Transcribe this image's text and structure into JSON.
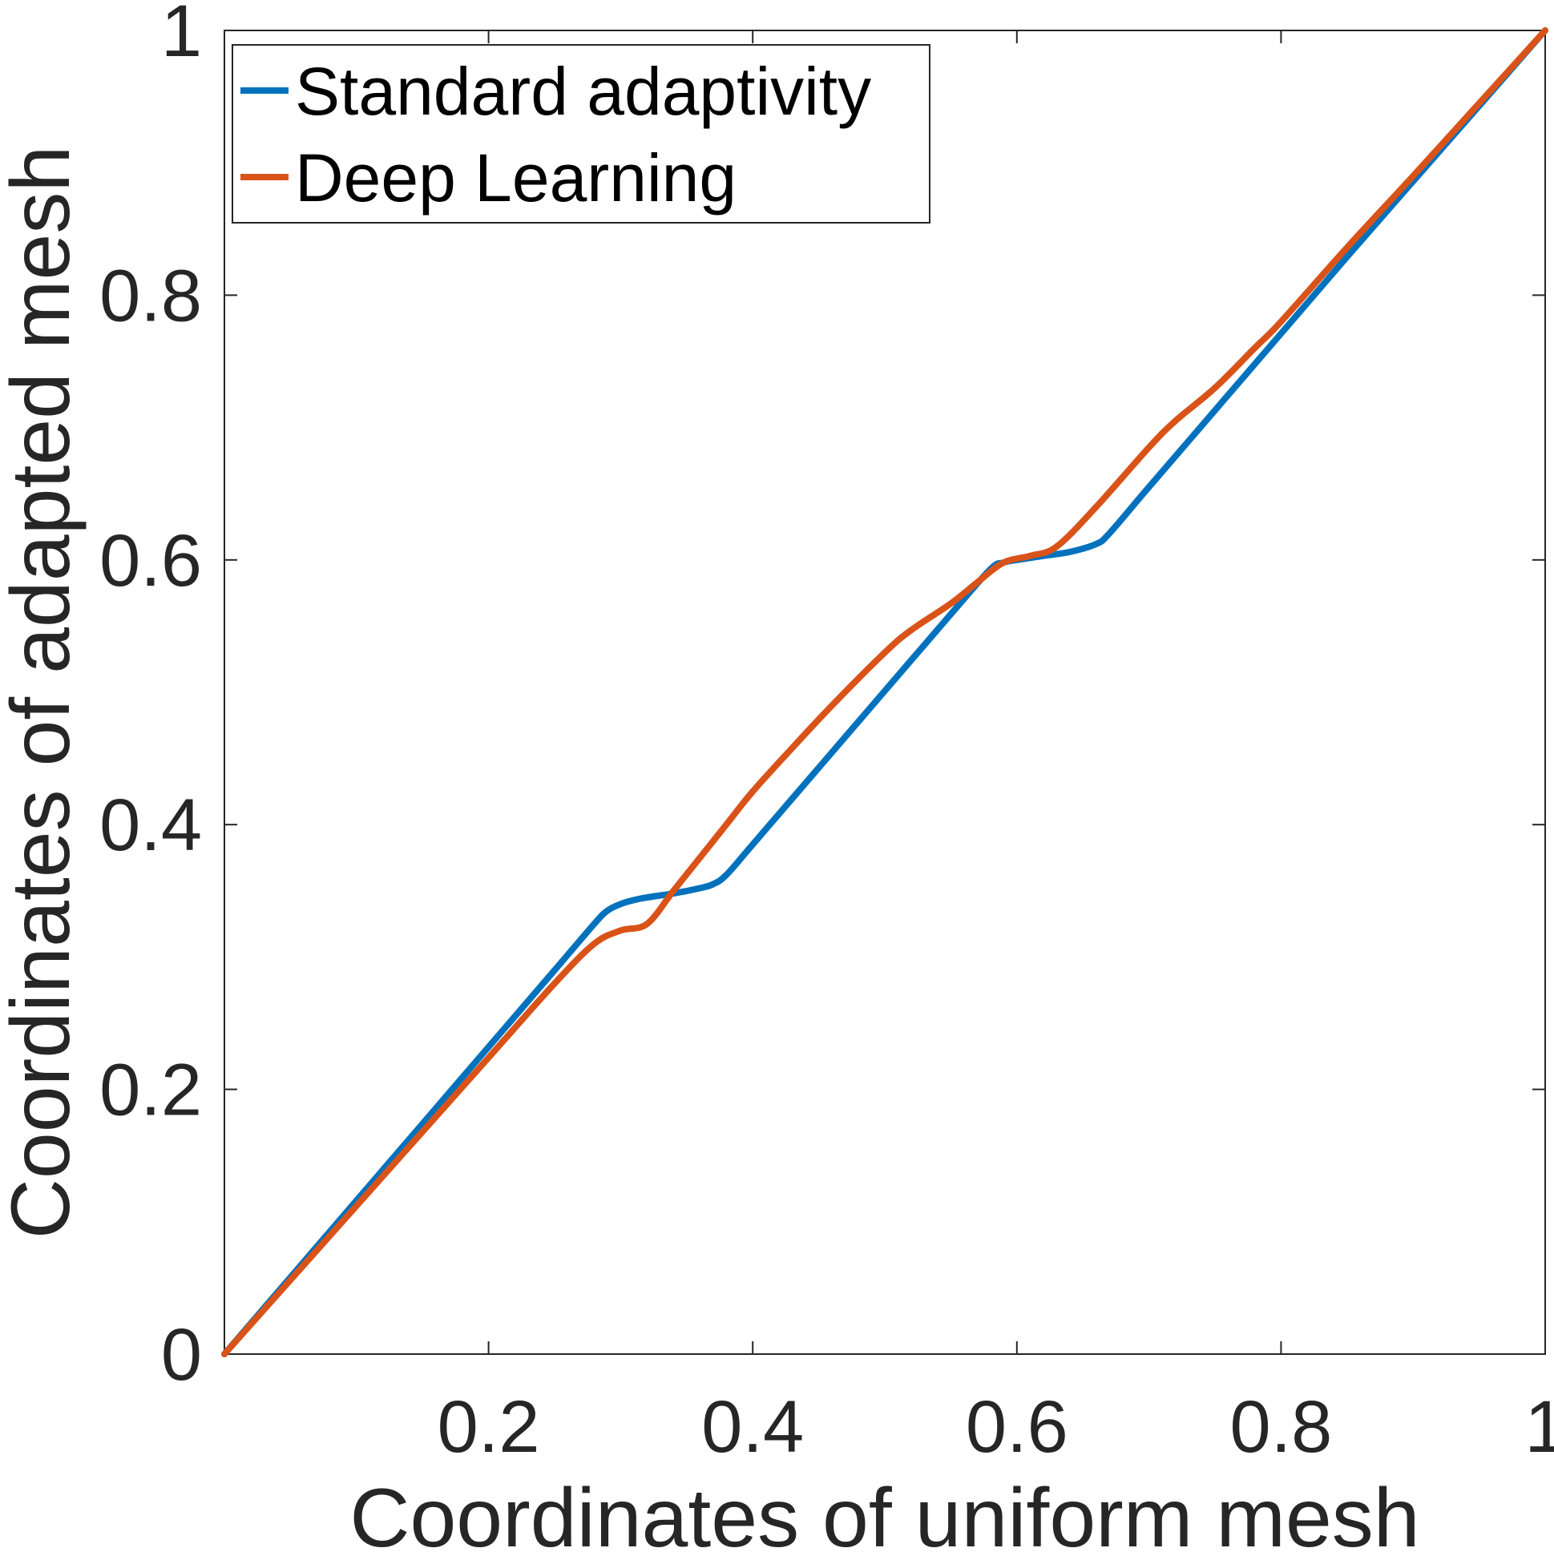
{
  "chart_data": {
    "type": "line",
    "title": "",
    "xlabel": "Coordinates of uniform mesh",
    "ylabel": "Coordinates of adapted mesh",
    "xlim": [
      0,
      1
    ],
    "ylim": [
      0,
      1
    ],
    "x_ticks": [
      0.2,
      0.4,
      0.6,
      0.8,
      1
    ],
    "x_tick_labels": [
      "0.2",
      "0.4",
      "0.6",
      "0.8",
      "1"
    ],
    "y_ticks": [
      0,
      0.2,
      0.4,
      0.6,
      0.8,
      1
    ],
    "y_tick_labels": [
      "0",
      "0.2",
      "0.4",
      "0.6",
      "0.8",
      "1"
    ],
    "grid": false,
    "legend_position": "top-left",
    "series": [
      {
        "name": "Standard adaptivity",
        "color": "#0072BD",
        "x": [
          0,
          0.05,
          0.1,
          0.15,
          0.2,
          0.25,
          0.28,
          0.29,
          0.3,
          0.31,
          0.32,
          0.34,
          0.36,
          0.37,
          0.38,
          0.4,
          0.45,
          0.5,
          0.55,
          0.58,
          0.59,
          0.6,
          0.62,
          0.64,
          0.66,
          0.67,
          0.7,
          0.75,
          0.8,
          0.85,
          0.9,
          0.95,
          1
        ],
        "y": [
          0,
          0.058,
          0.116,
          0.174,
          0.232,
          0.29,
          0.325,
          0.335,
          0.34,
          0.343,
          0.345,
          0.348,
          0.352,
          0.355,
          0.362,
          0.385,
          0.443,
          0.501,
          0.559,
          0.593,
          0.598,
          0.6,
          0.603,
          0.606,
          0.612,
          0.62,
          0.655,
          0.713,
          0.771,
          0.829,
          0.886,
          0.943,
          1
        ]
      },
      {
        "name": "Deep Learning",
        "color": "#D95319",
        "x": [
          0,
          0.05,
          0.1,
          0.15,
          0.2,
          0.25,
          0.28,
          0.3,
          0.32,
          0.34,
          0.36,
          0.38,
          0.4,
          0.43,
          0.46,
          0.5,
          0.52,
          0.55,
          0.57,
          0.59,
          0.61,
          0.63,
          0.66,
          0.7,
          0.72,
          0.75,
          0.78,
          0.8,
          0.85,
          0.9,
          0.95,
          1
        ],
        "y": [
          0,
          0.056,
          0.112,
          0.168,
          0.224,
          0.28,
          0.31,
          0.32,
          0.325,
          0.35,
          0.375,
          0.4,
          0.425,
          0.458,
          0.49,
          0.53,
          0.547,
          0.567,
          0.583,
          0.598,
          0.603,
          0.61,
          0.64,
          0.685,
          0.705,
          0.73,
          0.76,
          0.78,
          0.836,
          0.89,
          0.945,
          1
        ]
      }
    ]
  }
}
